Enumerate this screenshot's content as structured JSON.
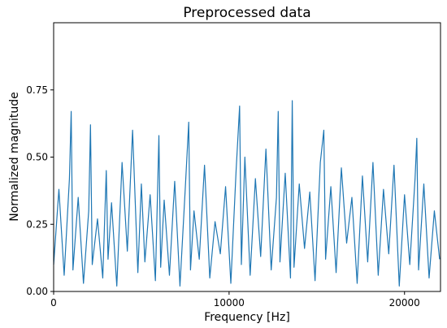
{
  "chart_data": {
    "type": "line",
    "title": "Preprocessed data",
    "xlabel": "Frequency [Hz]",
    "ylabel": "Normalized magnitude",
    "xlim": [
      0,
      22050
    ],
    "ylim": [
      0,
      1.0
    ],
    "grid": false,
    "xticks": [
      {
        "value": 0,
        "label": "0"
      },
      {
        "value": 10000,
        "label": "10000"
      },
      {
        "value": 20000,
        "label": "20000"
      }
    ],
    "yticks": [
      {
        "value": 0.0,
        "label": "0.00"
      },
      {
        "value": 0.25,
        "label": "0.25"
      },
      {
        "value": 0.5,
        "label": "0.50"
      },
      {
        "value": 0.75,
        "label": "0.75"
      }
    ],
    "series": [
      {
        "color": "#1f77b4",
        "x": [
          0,
          300,
          600,
          900,
          1000,
          1100,
          1400,
          1700,
          2000,
          2100,
          2200,
          2500,
          2800,
          3000,
          3100,
          3300,
          3600,
          3900,
          4200,
          4500,
          4800,
          5000,
          5200,
          5500,
          5800,
          6000,
          6100,
          6300,
          6600,
          6900,
          7200,
          7500,
          7700,
          7800,
          8000,
          8300,
          8600,
          8900,
          9200,
          9500,
          9800,
          10100,
          10400,
          10600,
          10700,
          10900,
          11200,
          11500,
          11800,
          12100,
          12400,
          12700,
          12800,
          12900,
          13200,
          13500,
          13600,
          13700,
          14000,
          14300,
          14600,
          14900,
          15200,
          15400,
          15500,
          15800,
          16100,
          16400,
          16700,
          17000,
          17300,
          17600,
          17900,
          18200,
          18500,
          18800,
          19100,
          19400,
          19700,
          20000,
          20300,
          20600,
          20700,
          20800,
          21100,
          21400,
          21700,
          22000
        ],
        "y": [
          0.1,
          0.38,
          0.06,
          0.42,
          0.67,
          0.08,
          0.35,
          0.03,
          0.3,
          0.62,
          0.1,
          0.27,
          0.05,
          0.45,
          0.12,
          0.33,
          0.02,
          0.48,
          0.15,
          0.6,
          0.07,
          0.4,
          0.11,
          0.36,
          0.04,
          0.58,
          0.09,
          0.34,
          0.06,
          0.41,
          0.02,
          0.38,
          0.63,
          0.08,
          0.3,
          0.12,
          0.47,
          0.05,
          0.26,
          0.14,
          0.39,
          0.03,
          0.45,
          0.69,
          0.1,
          0.5,
          0.06,
          0.42,
          0.13,
          0.53,
          0.08,
          0.35,
          0.67,
          0.11,
          0.44,
          0.05,
          0.71,
          0.09,
          0.4,
          0.16,
          0.37,
          0.04,
          0.48,
          0.6,
          0.12,
          0.39,
          0.07,
          0.46,
          0.18,
          0.35,
          0.03,
          0.43,
          0.11,
          0.48,
          0.06,
          0.38,
          0.14,
          0.47,
          0.02,
          0.36,
          0.1,
          0.42,
          0.57,
          0.08,
          0.4,
          0.05,
          0.3,
          0.12
        ]
      }
    ]
  }
}
